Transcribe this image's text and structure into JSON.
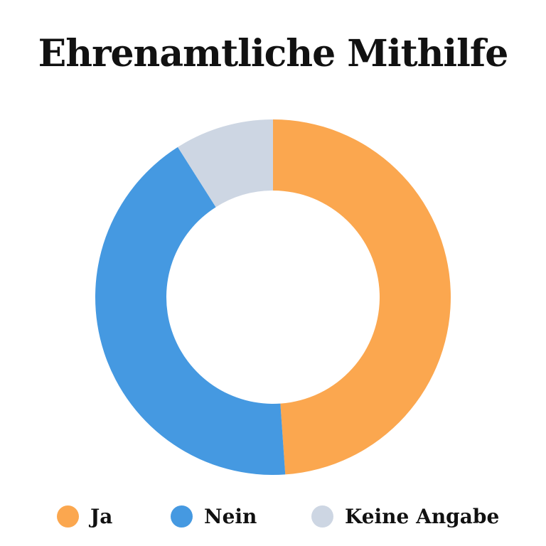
{
  "chart_data": {
    "type": "pie",
    "variant": "donut",
    "title": "Ehrenamtliche Mithilfe",
    "categories": [
      "Ja",
      "Nein",
      "Keine Angabe"
    ],
    "values": [
      48.9,
      42.1,
      9.0
    ],
    "unit": "%",
    "colors": [
      "#FBA74F",
      "#4599E1",
      "#CDD6E3"
    ],
    "legend_position": "bottom",
    "start_angle": "top",
    "direction": "clockwise"
  }
}
